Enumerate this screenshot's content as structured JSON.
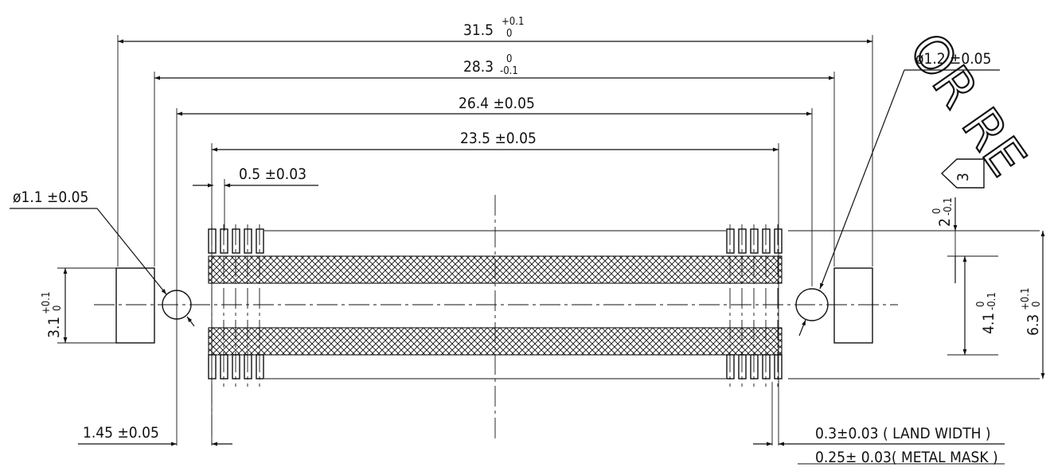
{
  "dimensions": {
    "overall": {
      "nominal": "31.5",
      "upper": "+0.1",
      "lower": "0"
    },
    "inner": {
      "nominal": "28.3",
      "upper": "0",
      "lower": "-0.1"
    },
    "hole_pitch": {
      "value": "26.4 ±0.05"
    },
    "pad_span": {
      "value": "23.5 ±0.05"
    },
    "pad_pitch": {
      "value": "0.5 ±0.03"
    },
    "left_hole": {
      "value": "ø1.1 ±0.05"
    },
    "right_hole": {
      "value": "ø1.2 ±0.05"
    },
    "left_height": {
      "nominal": "3.1",
      "upper": "+0.1",
      "lower": "0"
    },
    "row_gap": {
      "nominal": "2",
      "upper": "0",
      "lower": "-0.1"
    },
    "row_span": {
      "nominal": "4.1",
      "upper": "0",
      "lower": "-0.1"
    },
    "total_height": {
      "nominal": "6.3",
      "upper": "+0.1",
      "lower": "0"
    },
    "edge_offset": {
      "value": "1.45 ±0.05"
    },
    "land_width": {
      "value": "0.3±0.03 ( LAND WIDTH )"
    },
    "metal_mask": {
      "value": "0.25± 0.03( METAL MASK )"
    }
  },
  "note_flag": {
    "number": "3"
  },
  "watermark": {
    "text": "OR RE"
  }
}
